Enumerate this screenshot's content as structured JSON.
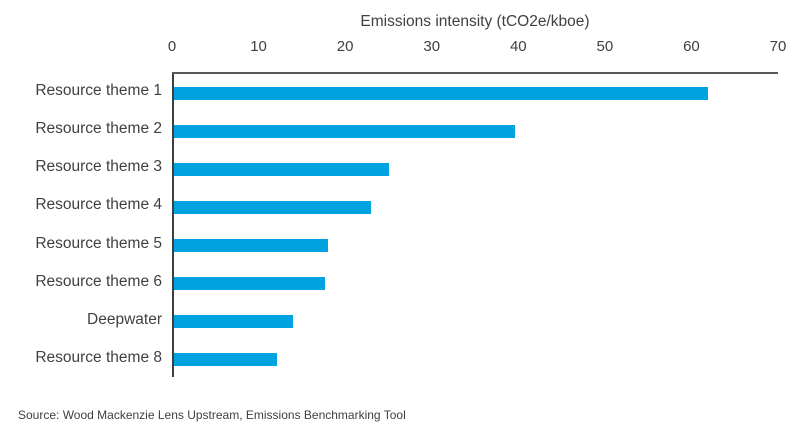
{
  "chart_data": {
    "type": "bar",
    "orientation": "horizontal",
    "title": "Emissions intensity (tCO2e/kboe)",
    "categories": [
      "Resource theme 1",
      "Resource theme 2",
      "Resource theme 3",
      "Resource theme 4",
      "Resource theme 5",
      "Resource theme 6",
      "Deepwater",
      "Resource theme 8"
    ],
    "values": [
      61.7,
      39.5,
      24.9,
      22.8,
      17.9,
      17.5,
      13.8,
      12.0
    ],
    "xlabel": "Emissions intensity (tCO2e/kboe)",
    "ylabel": "",
    "xlim": [
      0,
      70
    ],
    "xticks": [
      0,
      10,
      20,
      30,
      40,
      50,
      60,
      70
    ],
    "grid": false,
    "legend": "none",
    "axis_position": "top",
    "bar_color": "#00A3E0",
    "top_axis_line_color": "#58595b",
    "left_axis_line_color": "#3f3f3f",
    "text_color": "#404040"
  },
  "footer": {
    "source": "Source: Wood Mackenzie Lens Upstream, Emissions Benchmarking Tool"
  }
}
